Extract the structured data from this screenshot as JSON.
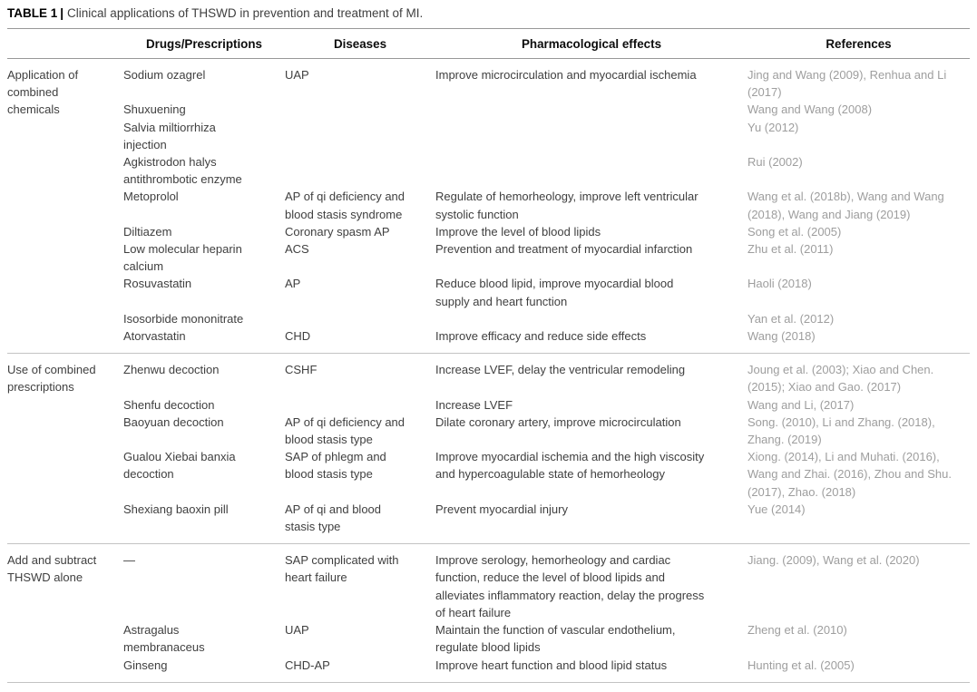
{
  "caption": {
    "label": "TABLE 1",
    "separator": "|",
    "text": "Clinical applications of THSWD in prevention and treatment of MI."
  },
  "columns": [
    "",
    "Drugs/Prescriptions",
    "Diseases",
    "Pharmacological effects",
    "References"
  ],
  "text_colors": {
    "body": "#3f3f3f",
    "references": "#9e9e9e",
    "header": "#0d0d0d"
  },
  "groups": [
    {
      "label": "Application of\ncombined\nchemicals",
      "rows": [
        {
          "drug": "Sodium ozagrel",
          "disease": "UAP",
          "effects": "Improve microcirculation and myocardial ischemia",
          "references": "Jing and Wang (2009), Renhua and Li\n(2017)"
        },
        {
          "drug": "Shuxuening",
          "disease": "",
          "effects": "",
          "references": "Wang and Wang (2008)"
        },
        {
          "drug": "Salvia miltiorrhiza\ninjection",
          "disease": "",
          "effects": "",
          "references": "Yu (2012)"
        },
        {
          "drug": "Agkistrodon halys\nantithrombotic enzyme",
          "disease": "",
          "effects": "",
          "references": "Rui (2002)"
        },
        {
          "drug": "Metoprolol",
          "disease": "AP of qi deficiency and\nblood stasis syndrome",
          "effects": "Regulate of hemorheology, improve left ventricular\nsystolic function",
          "references": "Wang et al. (2018b), Wang and Wang\n(2018), Wang and Jiang (2019)"
        },
        {
          "drug": "Diltiazem",
          "disease": "Coronary spasm AP",
          "effects": "Improve the level of blood lipids",
          "references": "Song et al. (2005)"
        },
        {
          "drug": "Low molecular heparin\ncalcium",
          "disease": "ACS",
          "effects": "Prevention and treatment of myocardial infarction",
          "references": "Zhu et al. (2011)"
        },
        {
          "drug": "Rosuvastatin",
          "disease": "AP",
          "effects": "Reduce blood lipid, improve myocardial blood\nsupply and heart function",
          "references": "Haoli (2018)"
        },
        {
          "drug": "Isosorbide mononitrate",
          "disease": "",
          "effects": "",
          "references": "Yan et al. (2012)"
        },
        {
          "drug": "Atorvastatin",
          "disease": "CHD",
          "effects": "Improve efficacy and reduce side effects",
          "references": "Wang (2018)"
        }
      ]
    },
    {
      "label": "Use of combined\nprescriptions",
      "rows": [
        {
          "drug": "Zhenwu decoction",
          "disease": "CSHF",
          "effects": "Increase LVEF, delay the ventricular remodeling",
          "references": "Joung et al. (2003); Xiao and Chen.\n(2015); Xiao and Gao. (2017)"
        },
        {
          "drug": "Shenfu decoction",
          "disease": "",
          "effects": "Increase LVEF",
          "references": "Wang and Li, (2017)"
        },
        {
          "drug": "Baoyuan decoction",
          "disease": "AP of qi deficiency and\nblood stasis type",
          "effects": "Dilate coronary artery, improve microcirculation",
          "references": "Song. (2010), Li and Zhang. (2018),\nZhang. (2019)"
        },
        {
          "drug": "Gualou Xiebai banxia\ndecoction",
          "disease": "SAP of phlegm and\nblood stasis type",
          "effects": "Improve myocardial ischemia and the high viscosity\nand hypercoagulable state of hemorheology",
          "references": "Xiong. (2014), Li and Muhati. (2016),\nWang and Zhai. (2016), Zhou and Shu.\n(2017), Zhao. (2018)"
        },
        {
          "drug": "Shexiang baoxin pill",
          "disease": "AP of qi and blood\nstasis type",
          "effects": "Prevent myocardial injury",
          "references": "Yue (2014)"
        }
      ]
    },
    {
      "label": "Add and subtract\nTHSWD alone",
      "rows": [
        {
          "drug": "—",
          "disease": "SAP complicated with\nheart failure",
          "effects": "Improve serology, hemorheology and cardiac\nfunction, reduce the level of blood lipids and\nalleviates inflammatory reaction, delay the progress\nof heart failure",
          "references": "Jiang. (2009), Wang et al. (2020)"
        },
        {
          "drug": "Astragalus\nmembranaceus",
          "disease": "UAP",
          "effects": "Maintain the function of vascular endothelium,\nregulate blood lipids",
          "references": "Zheng et al. (2010)"
        },
        {
          "drug": "Ginseng",
          "disease": "CHD-AP",
          "effects": "Improve heart function and blood lipid status",
          "references": "Hunting et al. (2005)"
        }
      ]
    }
  ]
}
